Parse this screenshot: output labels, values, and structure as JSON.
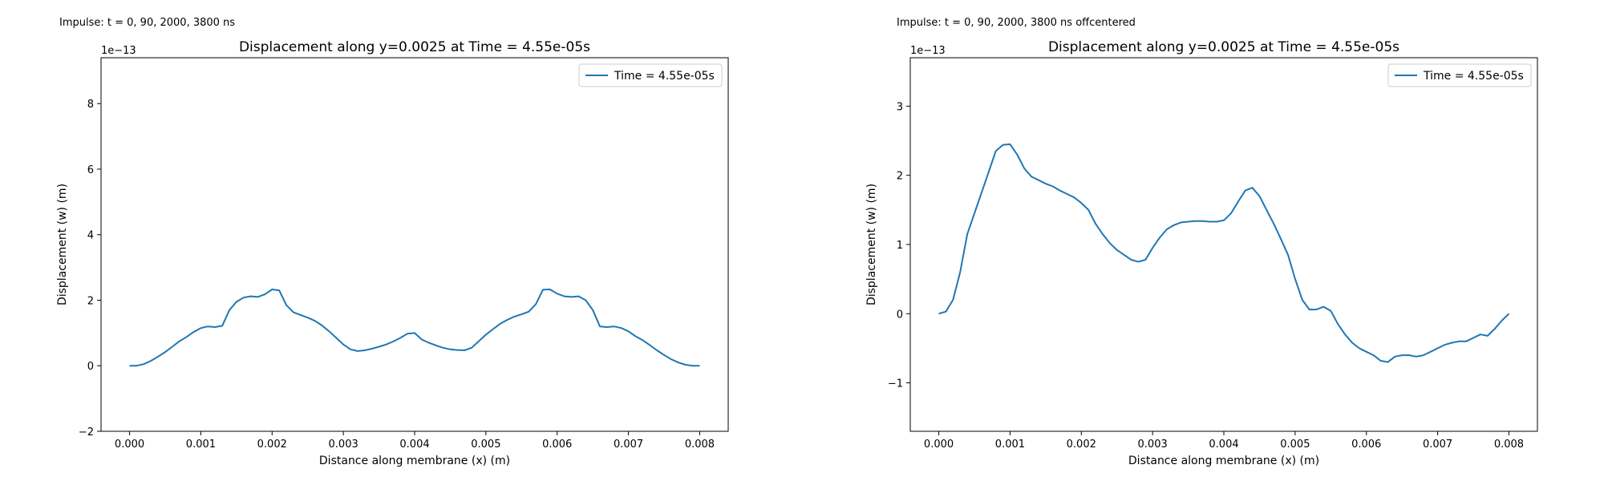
{
  "panels": [
    {
      "note": "Impulse: t = 0, 90, 2000, 3800 ns"
    },
    {
      "note": "Impulse: t = 0, 90, 2000, 3800 ns offcentered"
    }
  ],
  "chart_data": [
    {
      "type": "line",
      "title": "Displacement along y=0.0025 at Time = 4.55e-05s",
      "xlabel": "Distance along membrane (x) (m)",
      "ylabel": "Displacement (w) (m)",
      "y_offset_label": "1e−13",
      "xlim": [
        -0.0004,
        0.0084
      ],
      "ylim": [
        -2.0,
        9.4
      ],
      "xticks": [
        0.0,
        0.001,
        0.002,
        0.003,
        0.004,
        0.005,
        0.006,
        0.007,
        0.008
      ],
      "xtick_labels": [
        "0.000",
        "0.001",
        "0.002",
        "0.003",
        "0.004",
        "0.005",
        "0.006",
        "0.007",
        "0.008"
      ],
      "yticks": [
        -2,
        0,
        2,
        4,
        6,
        8
      ],
      "ytick_labels": [
        "−2",
        "0",
        "2",
        "4",
        "6",
        "8"
      ],
      "legend_position": "top-right",
      "grid": false,
      "color": "#1f77b4",
      "series": [
        {
          "name": "Time = 4.55e-05s",
          "x": [
            0.0,
            0.0001,
            0.0002,
            0.0003,
            0.0004,
            0.0005,
            0.0006,
            0.0007,
            0.0008,
            0.0009,
            0.001,
            0.0011,
            0.0012,
            0.0013,
            0.0014,
            0.0015,
            0.0016,
            0.0017,
            0.0018,
            0.0019,
            0.002,
            0.0021,
            0.0022,
            0.0023,
            0.0024,
            0.0025,
            0.0026,
            0.0027,
            0.0028,
            0.0029,
            0.003,
            0.0031,
            0.0032,
            0.0033,
            0.0034,
            0.0035,
            0.0036,
            0.0037,
            0.0038,
            0.0039,
            0.004,
            0.0041,
            0.0042,
            0.0043,
            0.0044,
            0.0045,
            0.0046,
            0.0047,
            0.0048,
            0.0049,
            0.005,
            0.0051,
            0.0052,
            0.0053,
            0.0054,
            0.0055,
            0.0056,
            0.0057,
            0.0058,
            0.0059,
            0.006,
            0.0061,
            0.0062,
            0.0063,
            0.0064,
            0.0065,
            0.0066,
            0.0067,
            0.0068,
            0.0069,
            0.007,
            0.0071,
            0.0072,
            0.0073,
            0.0074,
            0.0075,
            0.0076,
            0.0077,
            0.0078,
            0.0079,
            0.008
          ],
          "y": [
            0.0,
            0.0,
            0.05,
            0.15,
            0.28,
            0.42,
            0.58,
            0.75,
            0.88,
            1.03,
            1.15,
            1.2,
            1.18,
            1.22,
            1.7,
            1.95,
            2.08,
            2.12,
            2.1,
            2.18,
            2.33,
            2.3,
            1.85,
            1.63,
            1.55,
            1.47,
            1.37,
            1.23,
            1.05,
            0.85,
            0.65,
            0.5,
            0.45,
            0.47,
            0.52,
            0.58,
            0.65,
            0.74,
            0.85,
            0.98,
            1.0,
            0.8,
            0.7,
            0.62,
            0.55,
            0.5,
            0.48,
            0.47,
            0.55,
            0.75,
            0.95,
            1.12,
            1.28,
            1.4,
            1.5,
            1.57,
            1.65,
            1.88,
            2.32,
            2.33,
            2.2,
            2.12,
            2.1,
            2.12,
            2.0,
            1.7,
            1.2,
            1.18,
            1.2,
            1.15,
            1.05,
            0.9,
            0.78,
            0.63,
            0.47,
            0.33,
            0.2,
            0.1,
            0.03,
            0.0,
            0.0
          ]
        }
      ]
    },
    {
      "type": "line",
      "title": "Displacement along y=0.0025 at Time = 4.55e-05s",
      "xlabel": "Distance along membrane (x) (m)",
      "ylabel": "Displacement (w) (m)",
      "y_offset_label": "1e−13",
      "xlim": [
        -0.0004,
        0.0084
      ],
      "ylim": [
        -1.7,
        3.7
      ],
      "xticks": [
        0.0,
        0.001,
        0.002,
        0.003,
        0.004,
        0.005,
        0.006,
        0.007,
        0.008
      ],
      "xtick_labels": [
        "0.000",
        "0.001",
        "0.002",
        "0.003",
        "0.004",
        "0.005",
        "0.006",
        "0.007",
        "0.008"
      ],
      "yticks": [
        -1,
        0,
        1,
        2,
        3
      ],
      "ytick_labels": [
        "−1",
        "0",
        "1",
        "2",
        "3"
      ],
      "legend_position": "top-right",
      "grid": false,
      "color": "#1f77b4",
      "series": [
        {
          "name": "Time = 4.55e-05s",
          "x": [
            0.0,
            0.0001,
            0.0002,
            0.0003,
            0.0004,
            0.0005,
            0.0006,
            0.0007,
            0.0008,
            0.0009,
            0.001,
            0.0011,
            0.0012,
            0.0013,
            0.0014,
            0.0015,
            0.0016,
            0.0017,
            0.0018,
            0.0019,
            0.002,
            0.0021,
            0.0022,
            0.0023,
            0.0024,
            0.0025,
            0.0026,
            0.0027,
            0.0028,
            0.0029,
            0.003,
            0.0031,
            0.0032,
            0.0033,
            0.0034,
            0.0035,
            0.0036,
            0.0037,
            0.0038,
            0.0039,
            0.004,
            0.0041,
            0.0042,
            0.0043,
            0.0044,
            0.0045,
            0.0046,
            0.0047,
            0.0048,
            0.0049,
            0.005,
            0.0051,
            0.0052,
            0.0053,
            0.0054,
            0.0055,
            0.0056,
            0.0057,
            0.0058,
            0.0059,
            0.006,
            0.0061,
            0.0062,
            0.0063,
            0.0064,
            0.0065,
            0.0066,
            0.0067,
            0.0068,
            0.0069,
            0.007,
            0.0071,
            0.0072,
            0.0073,
            0.0074,
            0.0075,
            0.0076,
            0.0077,
            0.0078,
            0.0079,
            0.008
          ],
          "y": [
            0.0,
            0.03,
            0.2,
            0.6,
            1.15,
            1.45,
            1.75,
            2.05,
            2.35,
            2.44,
            2.45,
            2.3,
            2.1,
            1.98,
            1.93,
            1.88,
            1.84,
            1.78,
            1.73,
            1.68,
            1.6,
            1.5,
            1.3,
            1.15,
            1.02,
            0.92,
            0.85,
            0.78,
            0.75,
            0.78,
            0.95,
            1.1,
            1.22,
            1.28,
            1.32,
            1.33,
            1.34,
            1.34,
            1.33,
            1.33,
            1.35,
            1.45,
            1.62,
            1.78,
            1.82,
            1.7,
            1.5,
            1.3,
            1.08,
            0.85,
            0.5,
            0.2,
            0.06,
            0.06,
            0.1,
            0.04,
            -0.15,
            -0.3,
            -0.42,
            -0.5,
            -0.55,
            -0.6,
            -0.68,
            -0.7,
            -0.62,
            -0.6,
            -0.6,
            -0.62,
            -0.6,
            -0.55,
            -0.5,
            -0.45,
            -0.42,
            -0.4,
            -0.4,
            -0.35,
            -0.3,
            -0.32,
            -0.22,
            -0.1,
            0.0
          ]
        }
      ]
    }
  ]
}
